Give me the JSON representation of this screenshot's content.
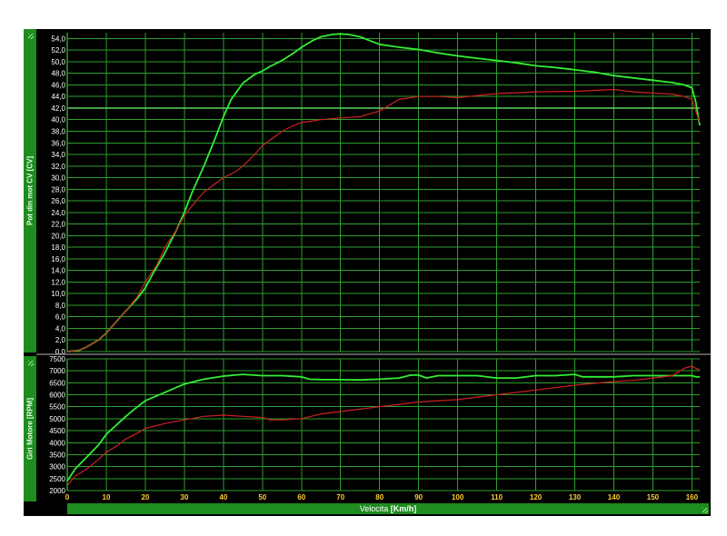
{
  "colors": {
    "background": "#000000",
    "grid": "#2e9e2e",
    "axis_text": "#ffffff",
    "series_power_1": "#33ee33",
    "series_power_2": "#cc2222",
    "series_rpm_1": "#33ee33",
    "series_rpm_2": "#cc2222",
    "panel_bar": "#1e8c1e"
  },
  "icons": {
    "resize": "resize-grip-icon"
  },
  "top_panel": {
    "ylabel": "Pot din mot CV  [CV]"
  },
  "bottom_panel": {
    "ylabel": "Giri Motore  [RPM]"
  },
  "x_axis": {
    "label": "Velocita",
    "unit": "[Km/h]"
  },
  "chart_data": [
    {
      "type": "line",
      "title": "",
      "xlabel": "Velocita [Km/h]",
      "ylabel": "Pot din mot CV [CV]",
      "xlim": [
        0,
        162
      ],
      "ylim": [
        0,
        55
      ],
      "grid": true,
      "x_ticks": [
        0,
        10,
        20,
        30,
        40,
        50,
        60,
        70,
        80,
        90,
        100,
        110,
        120,
        130,
        140,
        150,
        160
      ],
      "y_ticks": [
        "0,0",
        "2,0",
        "4,0",
        "6,0",
        "8,0",
        "10,0",
        "12,0",
        "14,0",
        "16,0",
        "18,0",
        "20,0",
        "22,0",
        "24,0",
        "26,0",
        "28,0",
        "30,0",
        "32,0",
        "34,0",
        "36,0",
        "38,0",
        "40,0",
        "42,0",
        "44,0",
        "46,0",
        "48,0",
        "50,0",
        "52,0",
        "54,0"
      ],
      "highlight_y": 42,
      "series": [
        {
          "color": "#33ee33",
          "x": [
            0,
            3,
            5,
            8,
            10,
            13,
            15,
            18,
            20,
            22,
            25,
            28,
            30,
            32,
            35,
            38,
            40,
            42,
            45,
            48,
            50,
            52,
            55,
            58,
            60,
            63,
            65,
            68,
            70,
            72,
            75,
            78,
            80,
            85,
            90,
            95,
            100,
            105,
            110,
            115,
            120,
            125,
            130,
            135,
            140,
            145,
            150,
            155,
            158,
            160,
            161,
            162
          ],
          "y": [
            0,
            0.2,
            0.8,
            2,
            3.2,
            5.5,
            7,
            9.2,
            11,
            13.5,
            17,
            21,
            24,
            27.5,
            32,
            37,
            40.5,
            43.5,
            46.3,
            47.8,
            48.4,
            49.2,
            50.2,
            51.5,
            52.5,
            53.7,
            54.3,
            54.7,
            54.8,
            54.7,
            54.3,
            53.5,
            53,
            52.5,
            52.1,
            51.5,
            51,
            50.6,
            50.2,
            49.8,
            49.3,
            49,
            48.6,
            48.2,
            47.6,
            47.2,
            46.8,
            46.4,
            46,
            45.5,
            43,
            39
          ]
        },
        {
          "color": "#cc2222",
          "x": [
            0,
            3,
            5,
            8,
            10,
            13,
            15,
            18,
            20,
            23,
            25,
            28,
            30,
            33,
            35,
            38,
            40,
            43,
            45,
            48,
            50,
            53,
            55,
            58,
            60,
            63,
            65,
            70,
            75,
            80,
            85,
            90,
            95,
            100,
            110,
            120,
            130,
            140,
            145,
            150,
            155,
            158,
            160,
            161,
            162
          ],
          "y": [
            0,
            0.2,
            0.8,
            2,
            3.2,
            5.5,
            7,
            9.5,
            12,
            15,
            18,
            21,
            23.5,
            26,
            27.5,
            29,
            30,
            31,
            32,
            34,
            35.5,
            37,
            38,
            39,
            39.5,
            39.8,
            40,
            40.3,
            40.5,
            41.5,
            43.5,
            44,
            44,
            43.8,
            44.5,
            44.8,
            44.9,
            45.2,
            44.8,
            44.6,
            44.4,
            44,
            43.5,
            41.5,
            39.5
          ]
        }
      ]
    },
    {
      "type": "line",
      "title": "",
      "xlabel": "Velocita [Km/h]",
      "ylabel": "Giri Motore [RPM]",
      "xlim": [
        0,
        162
      ],
      "ylim": [
        2000,
        7500
      ],
      "grid": true,
      "x_ticks": [
        0,
        10,
        20,
        30,
        40,
        50,
        60,
        70,
        80,
        90,
        100,
        110,
        120,
        130,
        140,
        150,
        160
      ],
      "y_ticks": [
        2000,
        2500,
        3000,
        3500,
        4000,
        4500,
        5000,
        5500,
        6000,
        6500,
        7000,
        7500
      ],
      "series": [
        {
          "color": "#33ee33",
          "x": [
            0,
            2,
            5,
            8,
            10,
            13,
            15,
            18,
            20,
            25,
            30,
            35,
            40,
            45,
            50,
            55,
            60,
            62,
            65,
            70,
            75,
            80,
            85,
            88,
            90,
            92,
            95,
            100,
            105,
            110,
            115,
            120,
            125,
            130,
            132,
            135,
            140,
            145,
            150,
            155,
            160,
            161,
            162
          ],
          "y": [
            2400,
            2900,
            3400,
            3900,
            4350,
            4800,
            5100,
            5500,
            5750,
            6100,
            6450,
            6650,
            6780,
            6850,
            6800,
            6800,
            6750,
            6650,
            6630,
            6630,
            6620,
            6650,
            6700,
            6820,
            6820,
            6700,
            6800,
            6800,
            6800,
            6700,
            6700,
            6800,
            6800,
            6850,
            6750,
            6750,
            6750,
            6800,
            6800,
            6800,
            6800,
            6750,
            6750
          ]
        },
        {
          "color": "#cc2222",
          "x": [
            0,
            2,
            5,
            8,
            10,
            13,
            15,
            18,
            20,
            25,
            30,
            35,
            40,
            45,
            50,
            52,
            55,
            60,
            65,
            70,
            75,
            80,
            85,
            90,
            95,
            100,
            110,
            120,
            130,
            140,
            145,
            150,
            155,
            158,
            160,
            161,
            162
          ],
          "y": [
            2200,
            2600,
            2900,
            3300,
            3600,
            3900,
            4150,
            4400,
            4600,
            4800,
            4950,
            5100,
            5150,
            5100,
            5050,
            4950,
            4950,
            5000,
            5200,
            5300,
            5400,
            5500,
            5600,
            5700,
            5750,
            5800,
            6000,
            6200,
            6400,
            6550,
            6600,
            6700,
            6800,
            7100,
            7200,
            7100,
            7050
          ]
        }
      ]
    }
  ]
}
